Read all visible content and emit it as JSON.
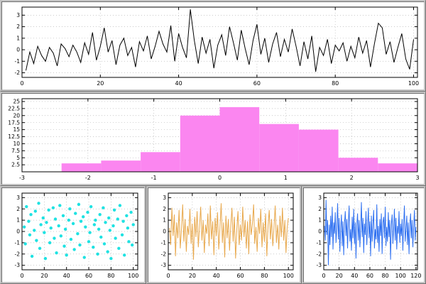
{
  "figure": {
    "background_color": "#ffffff",
    "frame_color": "#b5b5b5",
    "panel_count": 5
  },
  "chart_data": [
    {
      "type": "line",
      "name": "noise-line-black",
      "title": "",
      "xlabel": "",
      "ylabel": "",
      "color": "#000000",
      "xlim": [
        0,
        101
      ],
      "ylim": [
        -2.4,
        3.7
      ],
      "xticks": [
        0,
        20,
        40,
        60,
        80,
        100
      ],
      "yticks": [
        -2,
        -1,
        0,
        1,
        2,
        3
      ],
      "x_start": 1,
      "values": [
        -1.8,
        -0.2,
        -1.2,
        0.3,
        -0.5,
        -1.0,
        0.2,
        -0.3,
        -1.4,
        0.5,
        0.1,
        -0.6,
        0.4,
        -0.2,
        -1.1,
        0.6,
        -0.4,
        1.5,
        -0.9,
        0.3,
        1.9,
        -0.2,
        0.8,
        -1.3,
        0.4,
        1.0,
        -0.5,
        0.2,
        -1.5,
        0.7,
        -0.1,
        1.2,
        -0.8,
        0.3,
        1.6,
        0.5,
        -0.2,
        2.1,
        -1.0,
        1.4,
        0.2,
        -0.7,
        3.5,
        0.8,
        -1.2,
        1.1,
        -0.3,
        0.9,
        -1.6,
        0.4,
        1.3,
        -0.5,
        2.0,
        0.6,
        -0.9,
        1.7,
        0.1,
        -1.3,
        0.8,
        2.2,
        -0.4,
        1.0,
        -1.1,
        0.5,
        1.5,
        -0.6,
        0.9,
        -0.2,
        1.8,
        0.3,
        -1.4,
        0.7,
        -0.8,
        1.2,
        -1.9,
        0.2,
        -0.5,
        0.9,
        -1.2,
        0.4,
        -0.1,
        0.6,
        -1.0,
        0.3,
        -0.7,
        1.1,
        -0.3,
        0.8,
        -1.5,
        0.5,
        2.3,
        1.9,
        -0.4,
        0.7,
        -1.1,
        0.2,
        1.4,
        -0.8,
        -1.7,
        0.9
      ]
    },
    {
      "type": "bar",
      "name": "histogram-pink",
      "title": "",
      "xlabel": "",
      "ylabel": "",
      "color": "#fb86f0",
      "xlim": [
        -3,
        3
      ],
      "ylim": [
        0,
        26
      ],
      "xticks": [
        -3,
        -2,
        -1,
        0,
        1,
        2,
        3
      ],
      "yticks": [
        2.5,
        5,
        7.5,
        10,
        12.5,
        15,
        17.5,
        20,
        22.5,
        25
      ],
      "bin_edges": [
        -2.4,
        -1.8,
        -1.2,
        -0.6,
        0.0,
        0.6,
        1.2,
        1.8,
        2.4,
        3.0
      ],
      "counts": [
        3,
        4,
        7,
        20,
        23,
        17,
        15,
        5,
        3
      ]
    },
    {
      "type": "scatter",
      "name": "scatter-cyan",
      "title": "",
      "xlabel": "",
      "ylabel": "",
      "color": "#1fe2e2",
      "xlim": [
        0,
        104
      ],
      "ylim": [
        -3.4,
        3.4
      ],
      "xticks": [
        0,
        20,
        40,
        60,
        80,
        100
      ],
      "yticks": [
        -3,
        -2,
        -1,
        0,
        1,
        2,
        3
      ],
      "points": [
        [
          2,
          0.4
        ],
        [
          3,
          -1.1
        ],
        [
          4,
          2.2
        ],
        [
          6,
          0.9
        ],
        [
          7,
          -0.3
        ],
        [
          8,
          1.5
        ],
        [
          9,
          -2.2
        ],
        [
          11,
          0.1
        ],
        [
          12,
          1.8
        ],
        [
          13,
          -0.8
        ],
        [
          15,
          2.5
        ],
        [
          16,
          -1.5
        ],
        [
          17,
          0.6
        ],
        [
          19,
          1.2
        ],
        [
          20,
          -0.1
        ],
        [
          21,
          -2.4
        ],
        [
          22,
          0.8
        ],
        [
          24,
          1.9
        ],
        [
          25,
          -1.0
        ],
        [
          26,
          0.3
        ],
        [
          28,
          2.1
        ],
        [
          29,
          -0.6
        ],
        [
          30,
          1.1
        ],
        [
          31,
          -1.9
        ],
        [
          33,
          0.5
        ],
        [
          34,
          2.3
        ],
        [
          35,
          -0.4
        ],
        [
          37,
          1.4
        ],
        [
          38,
          -1.3
        ],
        [
          39,
          0.2
        ],
        [
          40,
          -2.1
        ],
        [
          42,
          1.0
        ],
        [
          43,
          2.0
        ],
        [
          44,
          -0.7
        ],
        [
          46,
          0.7
        ],
        [
          47,
          -1.6
        ],
        [
          48,
          1.6
        ],
        [
          50,
          -0.2
        ],
        [
          51,
          2.4
        ],
        [
          52,
          -1.2
        ],
        [
          53,
          0.9
        ],
        [
          55,
          1.3
        ],
        [
          56,
          -2.3
        ],
        [
          57,
          0.4
        ],
        [
          59,
          1.7
        ],
        [
          60,
          -0.9
        ],
        [
          61,
          -0.1
        ],
        [
          62,
          2.2
        ],
        [
          64,
          -1.4
        ],
        [
          65,
          0.6
        ],
        [
          66,
          1.0
        ],
        [
          68,
          -2.0
        ],
        [
          69,
          0.2
        ],
        [
          70,
          1.5
        ],
        [
          71,
          -0.5
        ],
        [
          73,
          2.1
        ],
        [
          74,
          -1.1
        ],
        [
          75,
          0.8
        ],
        [
          77,
          -1.8
        ],
        [
          78,
          1.2
        ],
        [
          79,
          0.1
        ],
        [
          80,
          -2.4
        ],
        [
          82,
          0.5
        ],
        [
          83,
          1.9
        ],
        [
          84,
          -0.6
        ],
        [
          86,
          1.1
        ],
        [
          87,
          -1.5
        ],
        [
          88,
          2.3
        ],
        [
          90,
          -0.3
        ],
        [
          91,
          0.9
        ],
        [
          92,
          -2.1
        ],
        [
          94,
          1.4
        ],
        [
          95,
          0.3
        ],
        [
          96,
          -0.9
        ],
        [
          98,
          1.7
        ],
        [
          99,
          -1.2
        ],
        [
          100,
          0.6
        ]
      ]
    },
    {
      "type": "line",
      "name": "noise-line-orange",
      "title": "",
      "xlabel": "",
      "ylabel": "",
      "color": "#e8a84c",
      "xlim": [
        0,
        104
      ],
      "ylim": [
        -3.4,
        3.4
      ],
      "xticks": [
        0,
        20,
        40,
        60,
        80,
        100
      ],
      "yticks": [
        -3,
        -2,
        -1,
        0,
        1,
        2,
        3
      ],
      "x_start": 1,
      "values": [
        0.3,
        -1.2,
        2.1,
        -0.4,
        1.5,
        -2.2,
        0.8,
        -0.6,
        1.9,
        -1.5,
        0.2,
        2.4,
        -0.9,
        1.1,
        -1.8,
        0.5,
        -0.3,
        2.0,
        -1.1,
        0.7,
        -2.5,
        1.3,
        -0.5,
        1.8,
        -1.4,
        0.4,
        2.2,
        -0.8,
        1.0,
        -1.9,
        0.6,
        -0.2,
        1.6,
        -1.3,
        2.3,
        -0.7,
        0.9,
        -2.1,
        1.2,
        -0.4,
        1.7,
        -1.6,
        0.3,
        2.5,
        -1.0,
        0.8,
        -2.3,
        1.4,
        -0.6,
        1.1,
        -1.7,
        0.5,
        2.1,
        -0.9,
        1.3,
        -2.4,
        0.2,
        1.8,
        -1.2,
        0.6,
        -0.8,
        2.2,
        -0.5,
        1.0,
        -1.5,
        0.9,
        -2.0,
        1.5,
        -0.3,
        0.7,
        2.4,
        -1.1,
        0.4,
        -1.8,
        1.2,
        -0.2,
        2.0,
        -1.4,
        0.8,
        -0.9,
        1.6,
        -2.2,
        0.5,
        1.9,
        -0.7,
        1.1,
        -1.3,
        0.3,
        2.3,
        -1.0,
        0.6,
        -1.6,
        1.4,
        -0.5,
        2.1,
        -0.8,
        1.0,
        -1.9,
        0.4,
        1.2
      ]
    },
    {
      "type": "line",
      "name": "noise-line-blue",
      "title": "",
      "xlabel": "",
      "ylabel": "",
      "color": "#2d6ff0",
      "xlim": [
        0,
        122
      ],
      "ylim": [
        -3.4,
        3.4
      ],
      "xticks": [
        0,
        20,
        40,
        60,
        80,
        100,
        120
      ],
      "yticks": [
        -3,
        -2,
        -1,
        0,
        1,
        2,
        3
      ],
      "x_start": 1,
      "values": [
        0.5,
        -0.8,
        2.8,
        -0.3,
        1.0,
        -3.0,
        0.6,
        -1.2,
        1.4,
        -0.5,
        2.2,
        -1.6,
        0.8,
        -0.2,
        1.7,
        -1.0,
        0.4,
        2.5,
        -0.7,
        1.2,
        -1.8,
        0.3,
        1.5,
        -1.3,
        0.9,
        -2.1,
        0.6,
        1.8,
        -0.4,
        1.1,
        -1.5,
        0.7,
        2.3,
        -0.9,
        0.2,
        -1.7,
        1.3,
        -0.6,
        2.0,
        -1.1,
        0.8,
        -2.4,
        0.5,
        1.6,
        -0.8,
        1.0,
        -1.4,
        0.3,
        2.6,
        -0.5,
        1.2,
        -1.9,
        0.7,
        -0.3,
        1.8,
        -1.2,
        0.4,
        2.1,
        -0.6,
        0.9,
        -2.2,
        1.4,
        -0.9,
        0.6,
        1.9,
        -1.5,
        0.2,
        -0.7,
        2.4,
        -1.0,
        0.5,
        -1.8,
        1.1,
        -0.4,
        1.6,
        -2.0,
        0.8,
        1.3,
        -0.6,
        2.2,
        -1.3,
        0.4,
        -0.9,
        1.7,
        -0.5,
        1.0,
        -2.5,
        0.6,
        1.5,
        -1.1,
        0.3,
        2.0,
        -0.8,
        1.2,
        -1.6,
        0.5,
        -0.2,
        1.8,
        -1.0,
        0.7,
        -0.4,
        1.1,
        -1.7,
        0.6,
        2.3,
        -0.9,
        0.2,
        1.4,
        -1.2,
        0.8,
        -2.0,
        0.5,
        1.6,
        -0.6,
        1.0,
        -1.4,
        0.3,
        1.9,
        -0.8,
        0.4
      ]
    }
  ]
}
